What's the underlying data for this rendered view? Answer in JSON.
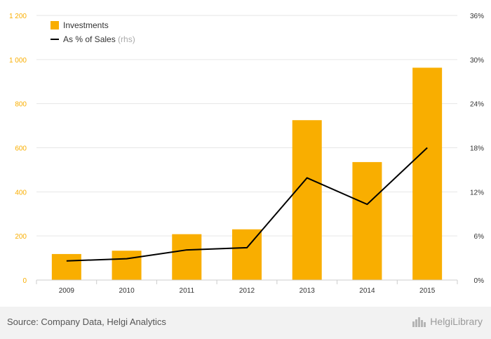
{
  "chart_data": {
    "type": "bar",
    "categories": [
      "2009",
      "2010",
      "2011",
      "2012",
      "2013",
      "2014",
      "2015"
    ],
    "series": [
      {
        "name": "Investments",
        "type": "bar",
        "axis": "left",
        "color": "#f9ae00",
        "values": [
          118,
          133,
          208,
          230,
          725,
          535,
          963
        ]
      },
      {
        "name": "As % of Sales",
        "suffix": "(rhs)",
        "type": "line",
        "axis": "right",
        "color": "#000000",
        "values": [
          2.6,
          2.9,
          4.1,
          4.4,
          13.9,
          10.3,
          18.0
        ]
      }
    ],
    "left_axis": {
      "ylim": [
        0,
        1200
      ],
      "ticks": [
        0,
        200,
        400,
        600,
        800,
        1000,
        1200
      ],
      "tick_labels": [
        "0",
        "200",
        "400",
        "600",
        "800",
        "1 000",
        "1 200"
      ],
      "label_color": "#f9ae00"
    },
    "right_axis": {
      "ylim": [
        0,
        36
      ],
      "ticks": [
        0,
        6,
        12,
        18,
        24,
        30,
        36
      ],
      "tick_labels": [
        "0%",
        "6%",
        "12%",
        "18%",
        "24%",
        "30%",
        "36%"
      ]
    },
    "grid": true,
    "legend_position": "top-left"
  },
  "footer": {
    "source": "Source: Company Data, Helgi Analytics",
    "brand": "HelgiLibrary"
  }
}
